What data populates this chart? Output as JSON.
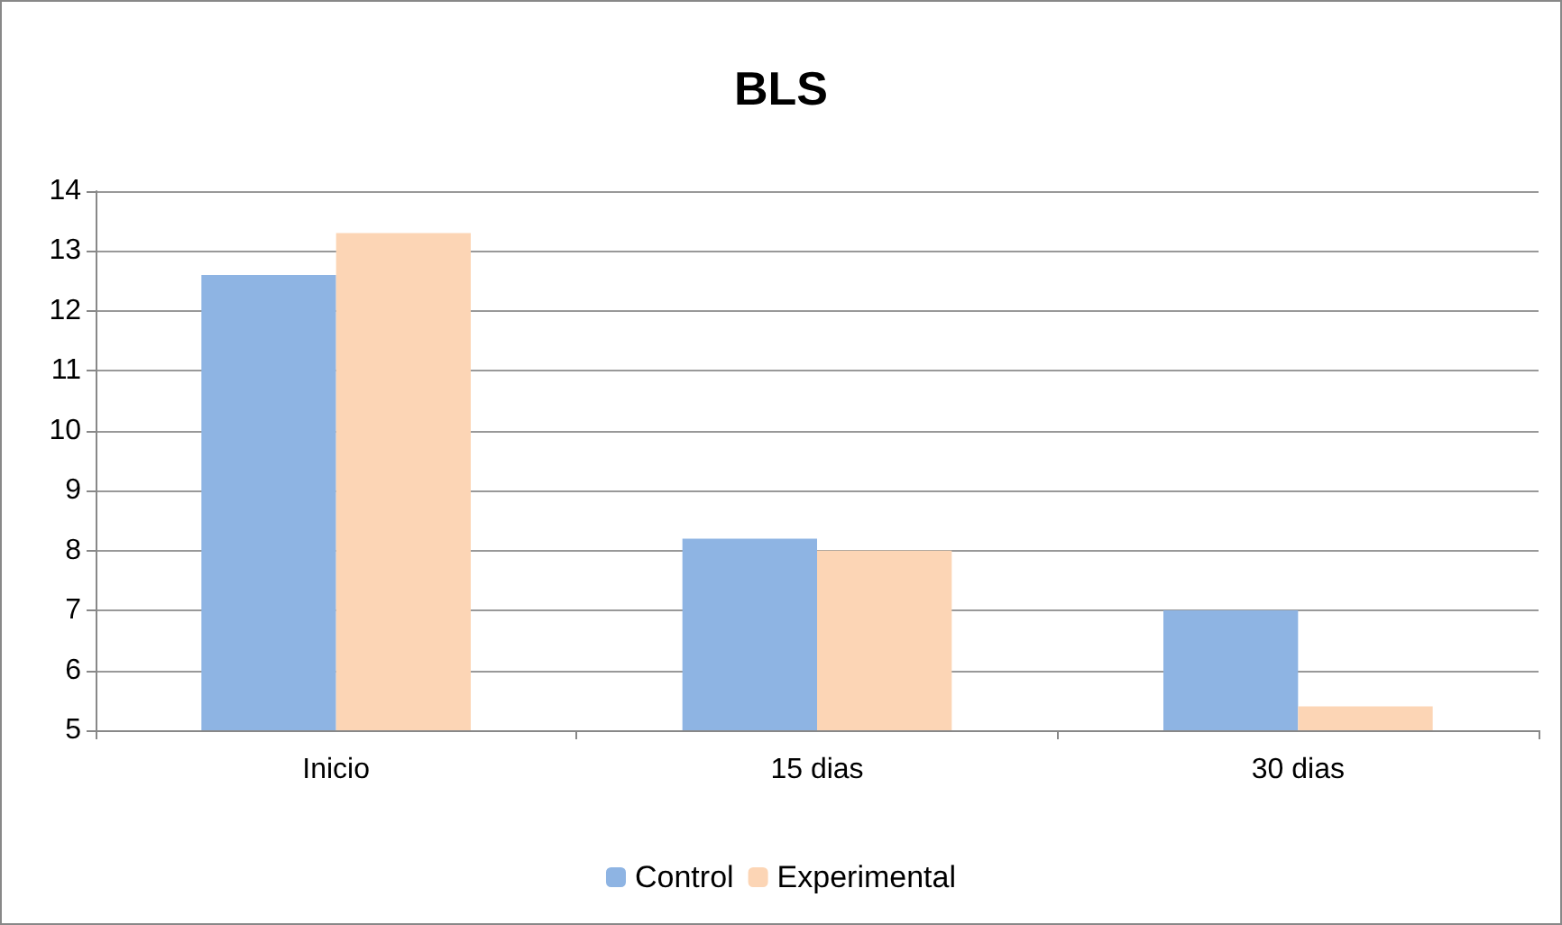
{
  "chart_data": {
    "type": "bar",
    "title": "BLS",
    "categories": [
      "Inicio",
      "15 dias",
      "30 dias"
    ],
    "series": [
      {
        "name": "Control",
        "color": "#8eb4e3",
        "values": [
          12.6,
          8.2,
          7.0
        ]
      },
      {
        "name": "Experimental",
        "color": "#fcd5b5",
        "values": [
          13.3,
          8.0,
          5.4
        ]
      }
    ],
    "ylim": [
      5,
      14
    ],
    "yticks": [
      5,
      6,
      7,
      8,
      9,
      10,
      11,
      12,
      13,
      14
    ],
    "grid": "y",
    "legend": "bottom"
  }
}
